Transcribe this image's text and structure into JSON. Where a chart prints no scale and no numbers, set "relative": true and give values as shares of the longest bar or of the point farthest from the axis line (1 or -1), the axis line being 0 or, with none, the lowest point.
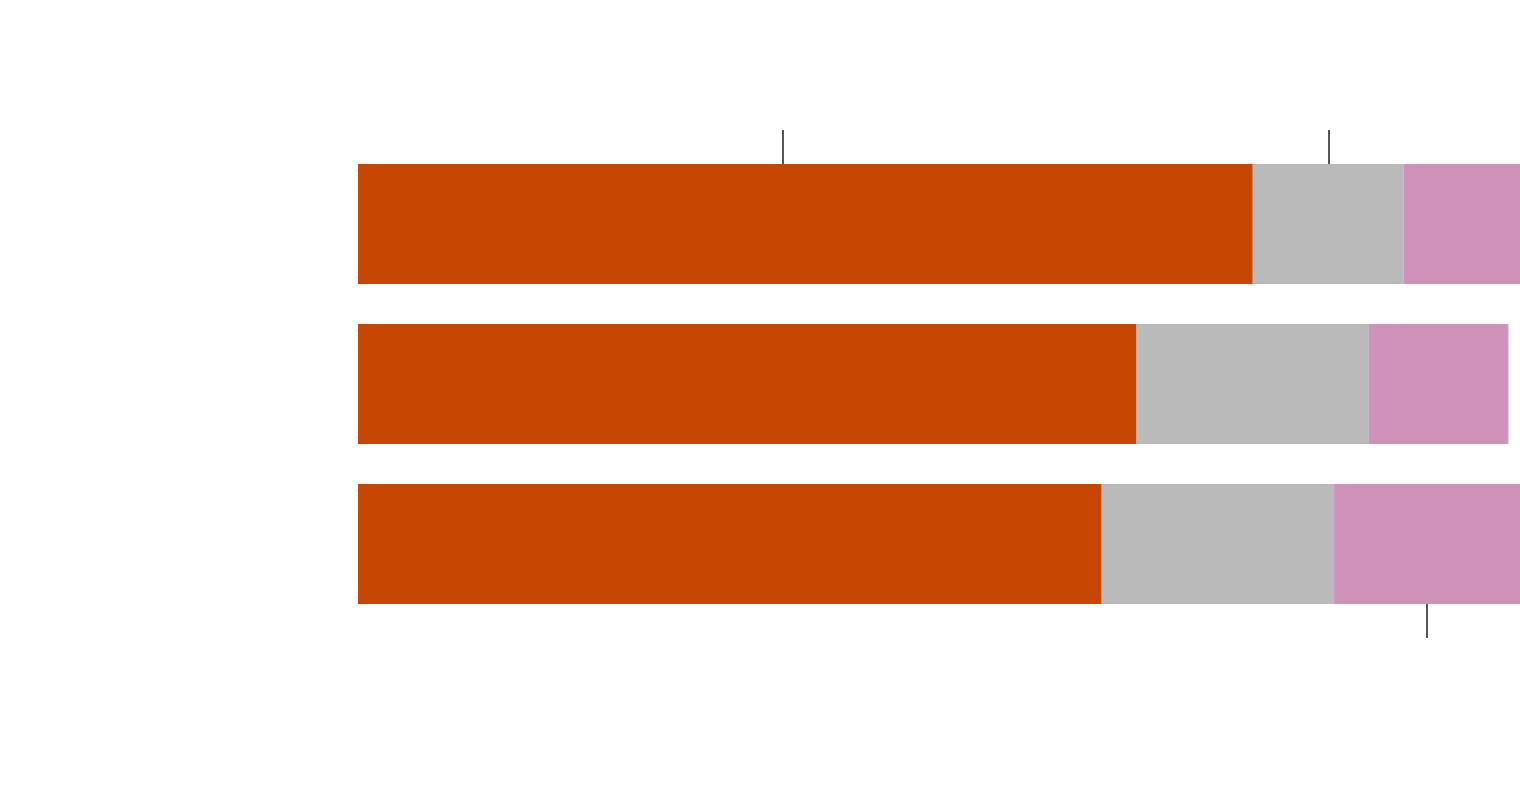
{
  "chart_data": {
    "type": "bar",
    "orientation": "horizontal",
    "stacked": true,
    "relative": true,
    "categories": [
      null,
      null,
      null
    ],
    "series": [
      {
        "color": "#c74600",
        "values": [
          0.77,
          0.67,
          0.64
        ]
      },
      {
        "color": "#bababa",
        "values": [
          0.13,
          0.2,
          0.2
        ]
      },
      {
        "color": "#cf92bb",
        "values": [
          0.1,
          0.12,
          0.16
        ]
      }
    ]
  }
}
